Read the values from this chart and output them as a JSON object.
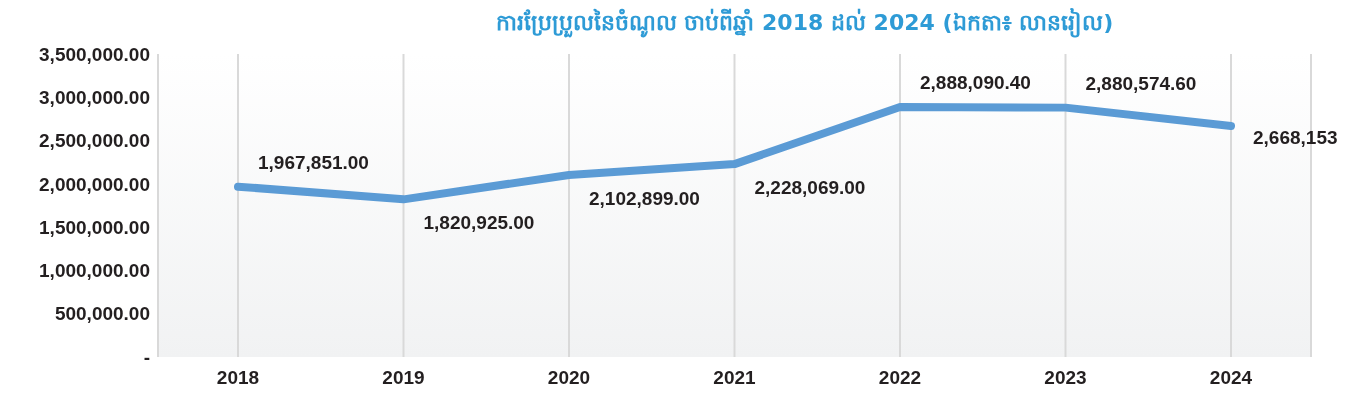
{
  "chart_data": {
    "type": "line",
    "title": "ការប្រែប្រួលនៃចំណូល ចាប់ពីឆ្នាំ 2018 ដល់ 2024 (ឯកតា៖ លានរៀល)",
    "categories": [
      "2018",
      "2019",
      "2020",
      "2021",
      "2022",
      "2023",
      "2024"
    ],
    "values": [
      1967851,
      1820925,
      2102899,
      2228069,
      2888090.4,
      2880574.6,
      2668153
    ],
    "value_labels": [
      "1,967,851.00",
      "1,820,925.00",
      "2,102,899.00",
      "2,228,069.00",
      "2,888,090.40",
      "2,880,574.60",
      "2,668,153"
    ],
    "color": "#5b9bd5",
    "marker": "none",
    "line_style": "solid",
    "grid": "x",
    "legend": false,
    "ylim": [
      0,
      3500000
    ],
    "yticks": [
      {
        "value": 0,
        "label": "-"
      },
      {
        "value": 500000,
        "label": "500,000.00"
      },
      {
        "value": 1000000,
        "label": "1,000,000.00"
      },
      {
        "value": 1500000,
        "label": "1,500,000.00"
      },
      {
        "value": 2000000,
        "label": "2,000,000.00"
      },
      {
        "value": 2500000,
        "label": "2,500,000.00"
      },
      {
        "value": 3000000,
        "label": "3,000,000.00"
      },
      {
        "value": 3500000,
        "label": "3,500,000.00"
      }
    ]
  }
}
